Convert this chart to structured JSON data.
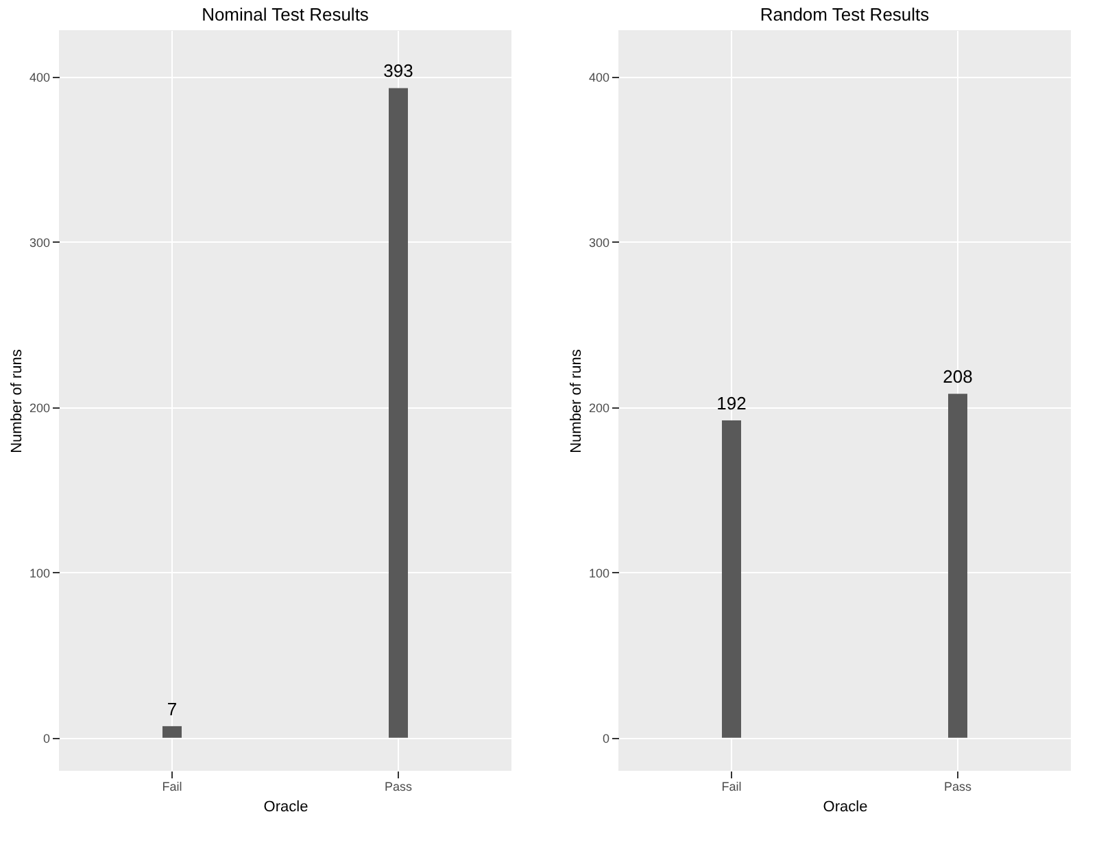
{
  "chart_data": [
    {
      "type": "bar",
      "title": "Nominal Test Results",
      "xlabel": "Oracle",
      "ylabel": "Number of runs",
      "categories": [
        "Fail",
        "Pass"
      ],
      "values": [
        7,
        393
      ],
      "color": "#595959",
      "data_labels": true,
      "ylim": [
        -20,
        428
      ],
      "yticks": [
        0,
        100,
        200,
        300,
        400
      ],
      "grid": true
    },
    {
      "type": "bar",
      "title": "Random Test Results",
      "xlabel": "Oracle",
      "ylabel": "Number of runs",
      "categories": [
        "Fail",
        "Pass"
      ],
      "values": [
        192,
        208
      ],
      "color": "#595959",
      "data_labels": true,
      "ylim": [
        -20,
        428
      ],
      "yticks": [
        0,
        100,
        200,
        300,
        400
      ],
      "grid": true
    }
  ]
}
